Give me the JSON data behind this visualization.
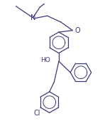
{
  "bg_color": "#ffffff",
  "line_color": "#3a3a7a",
  "text_color": "#3a3a7a",
  "figsize": [
    1.41,
    1.84
  ],
  "dpi": 100,
  "bond_width": 0.9,
  "font_size": 6.5,
  "xlim": [
    -1.6,
    2.0
  ],
  "ylim": [
    -2.5,
    2.0
  ]
}
